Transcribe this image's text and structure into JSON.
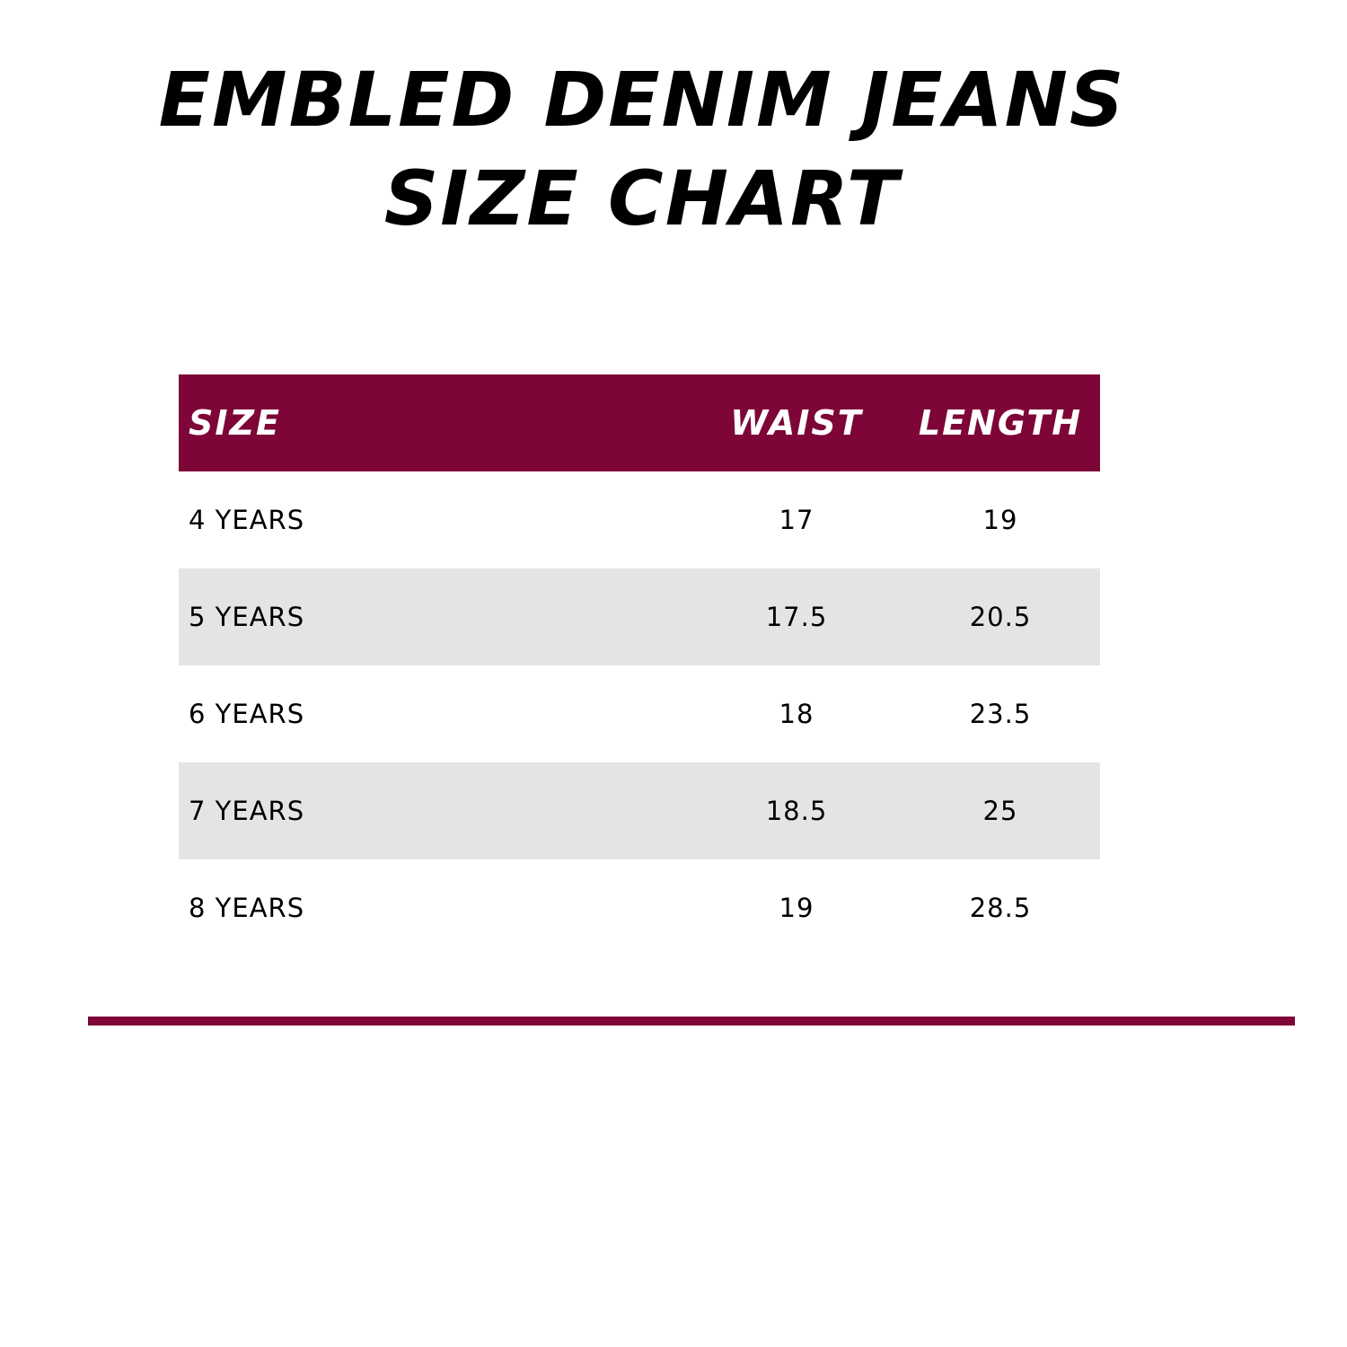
{
  "header": {
    "title_line1": "EMBLED DENIM JEANS",
    "title_line2": "SIZE CHART"
  },
  "table": {
    "columns": [
      "SIZE",
      "WAIST",
      "LENGTH"
    ],
    "rows": [
      [
        "4 YEARS",
        "17",
        "19"
      ],
      [
        "5 YEARS",
        "17.5",
        "20.5"
      ],
      [
        "6 YEARS",
        "18",
        "23.5"
      ],
      [
        "7 YEARS",
        "18.5",
        "25"
      ],
      [
        "8 YEARS",
        "19",
        "28.5"
      ]
    ]
  }
}
